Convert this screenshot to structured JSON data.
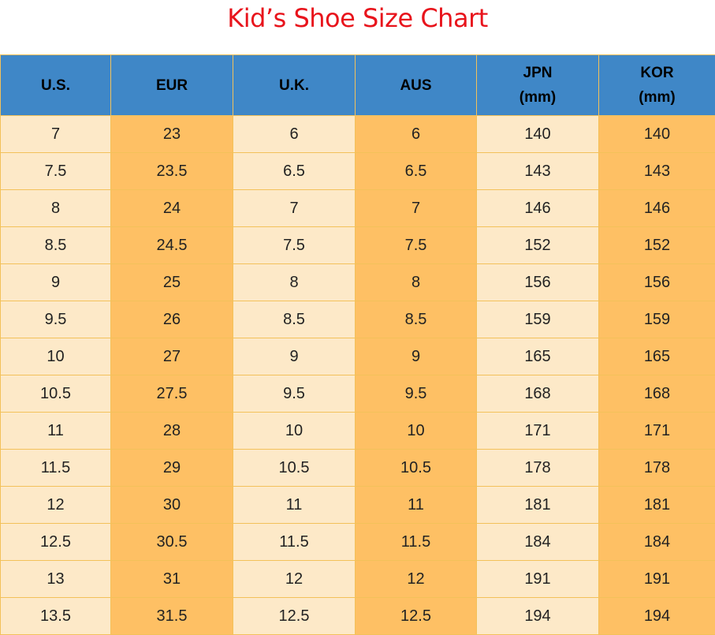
{
  "title": "Kid’s Shoe Size Chart",
  "columns": [
    {
      "line1": "U.S.",
      "line2": ""
    },
    {
      "line1": "EUR",
      "line2": ""
    },
    {
      "line1": "U.K.",
      "line2": ""
    },
    {
      "line1": "AUS",
      "line2": ""
    },
    {
      "line1": "JPN",
      "line2": "(mm)"
    },
    {
      "line1": "KOR",
      "line2": "(mm)"
    }
  ],
  "colors": {
    "title": "#e8141c",
    "header_bg": "#3f87c7",
    "cell_light": "#fde9c8",
    "cell_dark": "#fec064",
    "grid": "#f3c15a"
  },
  "chart_data": {
    "type": "table",
    "title": "Kid’s Shoe Size Chart",
    "headers": [
      "U.S.",
      "EUR",
      "U.K.",
      "AUS",
      "JPN (mm)",
      "KOR (mm)"
    ],
    "rows": [
      [
        "7",
        "23",
        "6",
        "6",
        "140",
        "140"
      ],
      [
        "7.5",
        "23.5",
        "6.5",
        "6.5",
        "143",
        "143"
      ],
      [
        "8",
        "24",
        "7",
        "7",
        "146",
        "146"
      ],
      [
        "8.5",
        "24.5",
        "7.5",
        "7.5",
        "152",
        "152"
      ],
      [
        "9",
        "25",
        "8",
        "8",
        "156",
        "156"
      ],
      [
        "9.5",
        "26",
        "8.5",
        "8.5",
        "159",
        "159"
      ],
      [
        "10",
        "27",
        "9",
        "9",
        "165",
        "165"
      ],
      [
        "10.5",
        "27.5",
        "9.5",
        "9.5",
        "168",
        "168"
      ],
      [
        "11",
        "28",
        "10",
        "10",
        "171",
        "171"
      ],
      [
        "11.5",
        "29",
        "10.5",
        "10.5",
        "178",
        "178"
      ],
      [
        "12",
        "30",
        "11",
        "11",
        "181",
        "181"
      ],
      [
        "12.5",
        "30.5",
        "11.5",
        "11.5",
        "184",
        "184"
      ],
      [
        "13",
        "31",
        "12",
        "12",
        "191",
        "191"
      ],
      [
        "13.5",
        "31.5",
        "12.5",
        "12.5",
        "194",
        "194"
      ]
    ]
  }
}
